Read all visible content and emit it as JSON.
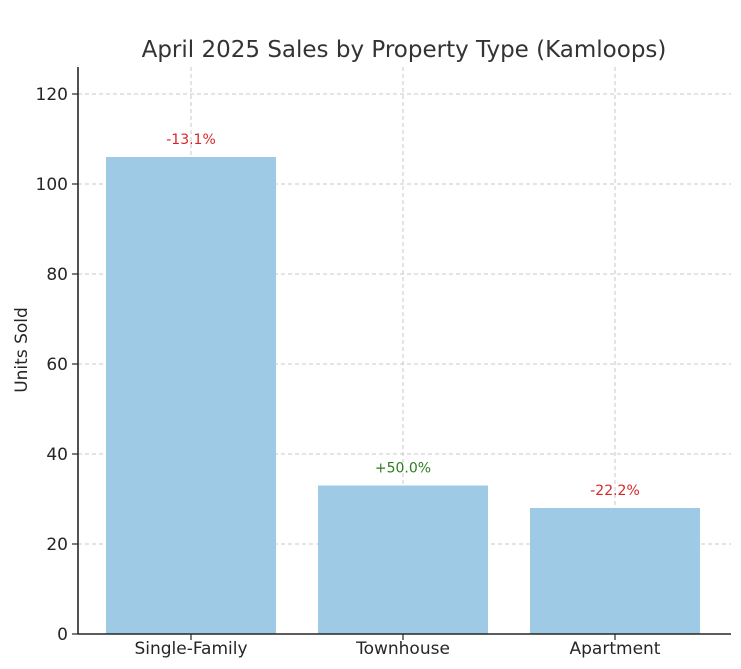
{
  "chart_data": {
    "type": "bar",
    "title": "April 2025 Sales by Property Type (Kamloops)",
    "xlabel": "",
    "ylabel": "Units Sold",
    "categories": [
      "Single-Family",
      "Townhouse",
      "Apartment"
    ],
    "values": [
      106,
      33,
      28
    ],
    "data_labels": [
      "-13.1%",
      "+50.0%",
      "-22.2%"
    ],
    "data_label_colors": [
      "#d62728",
      "#2e7d1f",
      "#d62728"
    ],
    "bar_color": "#9ecae6",
    "ylim": [
      0,
      126
    ],
    "yticks": [
      0,
      20,
      40,
      60,
      80,
      100,
      120
    ],
    "grid": true,
    "legend": "none"
  }
}
